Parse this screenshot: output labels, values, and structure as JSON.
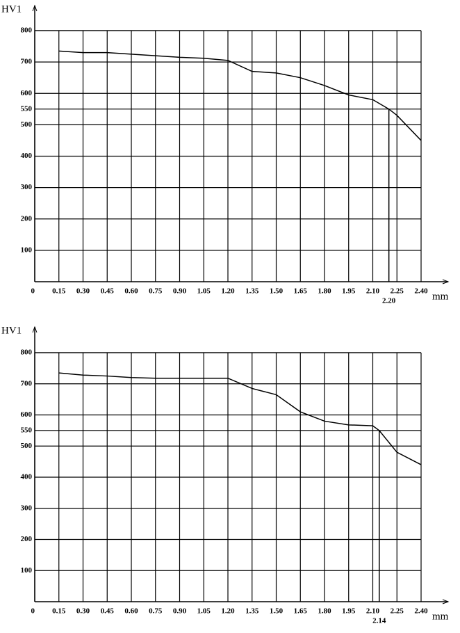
{
  "chart_data": [
    {
      "type": "line",
      "y_label": "HV1",
      "x_label": "mm",
      "color": "#000000",
      "grid": true,
      "x": [
        0.15,
        0.3,
        0.45,
        0.6,
        0.75,
        0.9,
        1.05,
        1.2,
        1.35,
        1.5,
        1.65,
        1.8,
        1.95,
        2.1,
        2.2,
        2.25,
        2.4
      ],
      "values": [
        735,
        730,
        730,
        725,
        720,
        715,
        712,
        705,
        670,
        665,
        650,
        625,
        595,
        580,
        550,
        530,
        450
      ],
      "xlim": [
        0,
        2.4
      ],
      "ylim": [
        0,
        800
      ],
      "xticks": [
        0,
        0.15,
        {
          "value": 0.3,
          "label": "0.30"
        },
        0.45,
        {
          "value": 0.6,
          "label": "0.60"
        },
        0.75,
        {
          "value": 0.9,
          "label": "0.90"
        },
        1.05,
        {
          "value": 1.2,
          "label": "1.20"
        },
        1.35,
        {
          "value": 1.5,
          "label": "1.50"
        },
        1.65,
        {
          "value": 1.8,
          "label": "1.80"
        },
        1.95,
        {
          "value": 2.1,
          "label": "2.10"
        },
        2.25,
        {
          "value": 2.4,
          "label": "2.40"
        }
      ],
      "yticks": [
        100,
        200,
        300,
        400,
        500,
        550,
        600,
        700,
        800
      ],
      "marker": {
        "value": 2.2,
        "label": "2.20",
        "y": 550
      }
    },
    {
      "type": "line",
      "y_label": "HV1",
      "x_label": "mm",
      "color": "#000000",
      "grid": true,
      "x": [
        0.15,
        0.3,
        0.45,
        0.6,
        0.75,
        0.9,
        1.05,
        1.2,
        1.35,
        1.5,
        1.65,
        1.8,
        1.95,
        2.1,
        2.14,
        2.25,
        2.4
      ],
      "values": [
        735,
        728,
        725,
        720,
        718,
        718,
        718,
        718,
        685,
        665,
        610,
        580,
        568,
        565,
        550,
        480,
        440
      ],
      "xlim": [
        0,
        2.4
      ],
      "ylim": [
        0,
        800
      ],
      "xticks": [
        0,
        0.15,
        {
          "value": 0.3,
          "label": "0.30"
        },
        0.45,
        {
          "value": 0.6,
          "label": "0.60"
        },
        0.75,
        {
          "value": 0.9,
          "label": "0.90"
        },
        1.05,
        {
          "value": 1.2,
          "label": "1.20"
        },
        1.35,
        {
          "value": 1.5,
          "label": "1.50"
        },
        1.65,
        {
          "value": 1.8,
          "label": "1.80"
        },
        1.95,
        {
          "value": 2.1,
          "label": "2.10"
        },
        2.25,
        {
          "value": 2.4,
          "label": "2.40"
        }
      ],
      "yticks": [
        100,
        200,
        300,
        400,
        500,
        550,
        600,
        700,
        800
      ],
      "marker": {
        "value": 2.14,
        "label": "2.14",
        "y": 550
      }
    }
  ]
}
